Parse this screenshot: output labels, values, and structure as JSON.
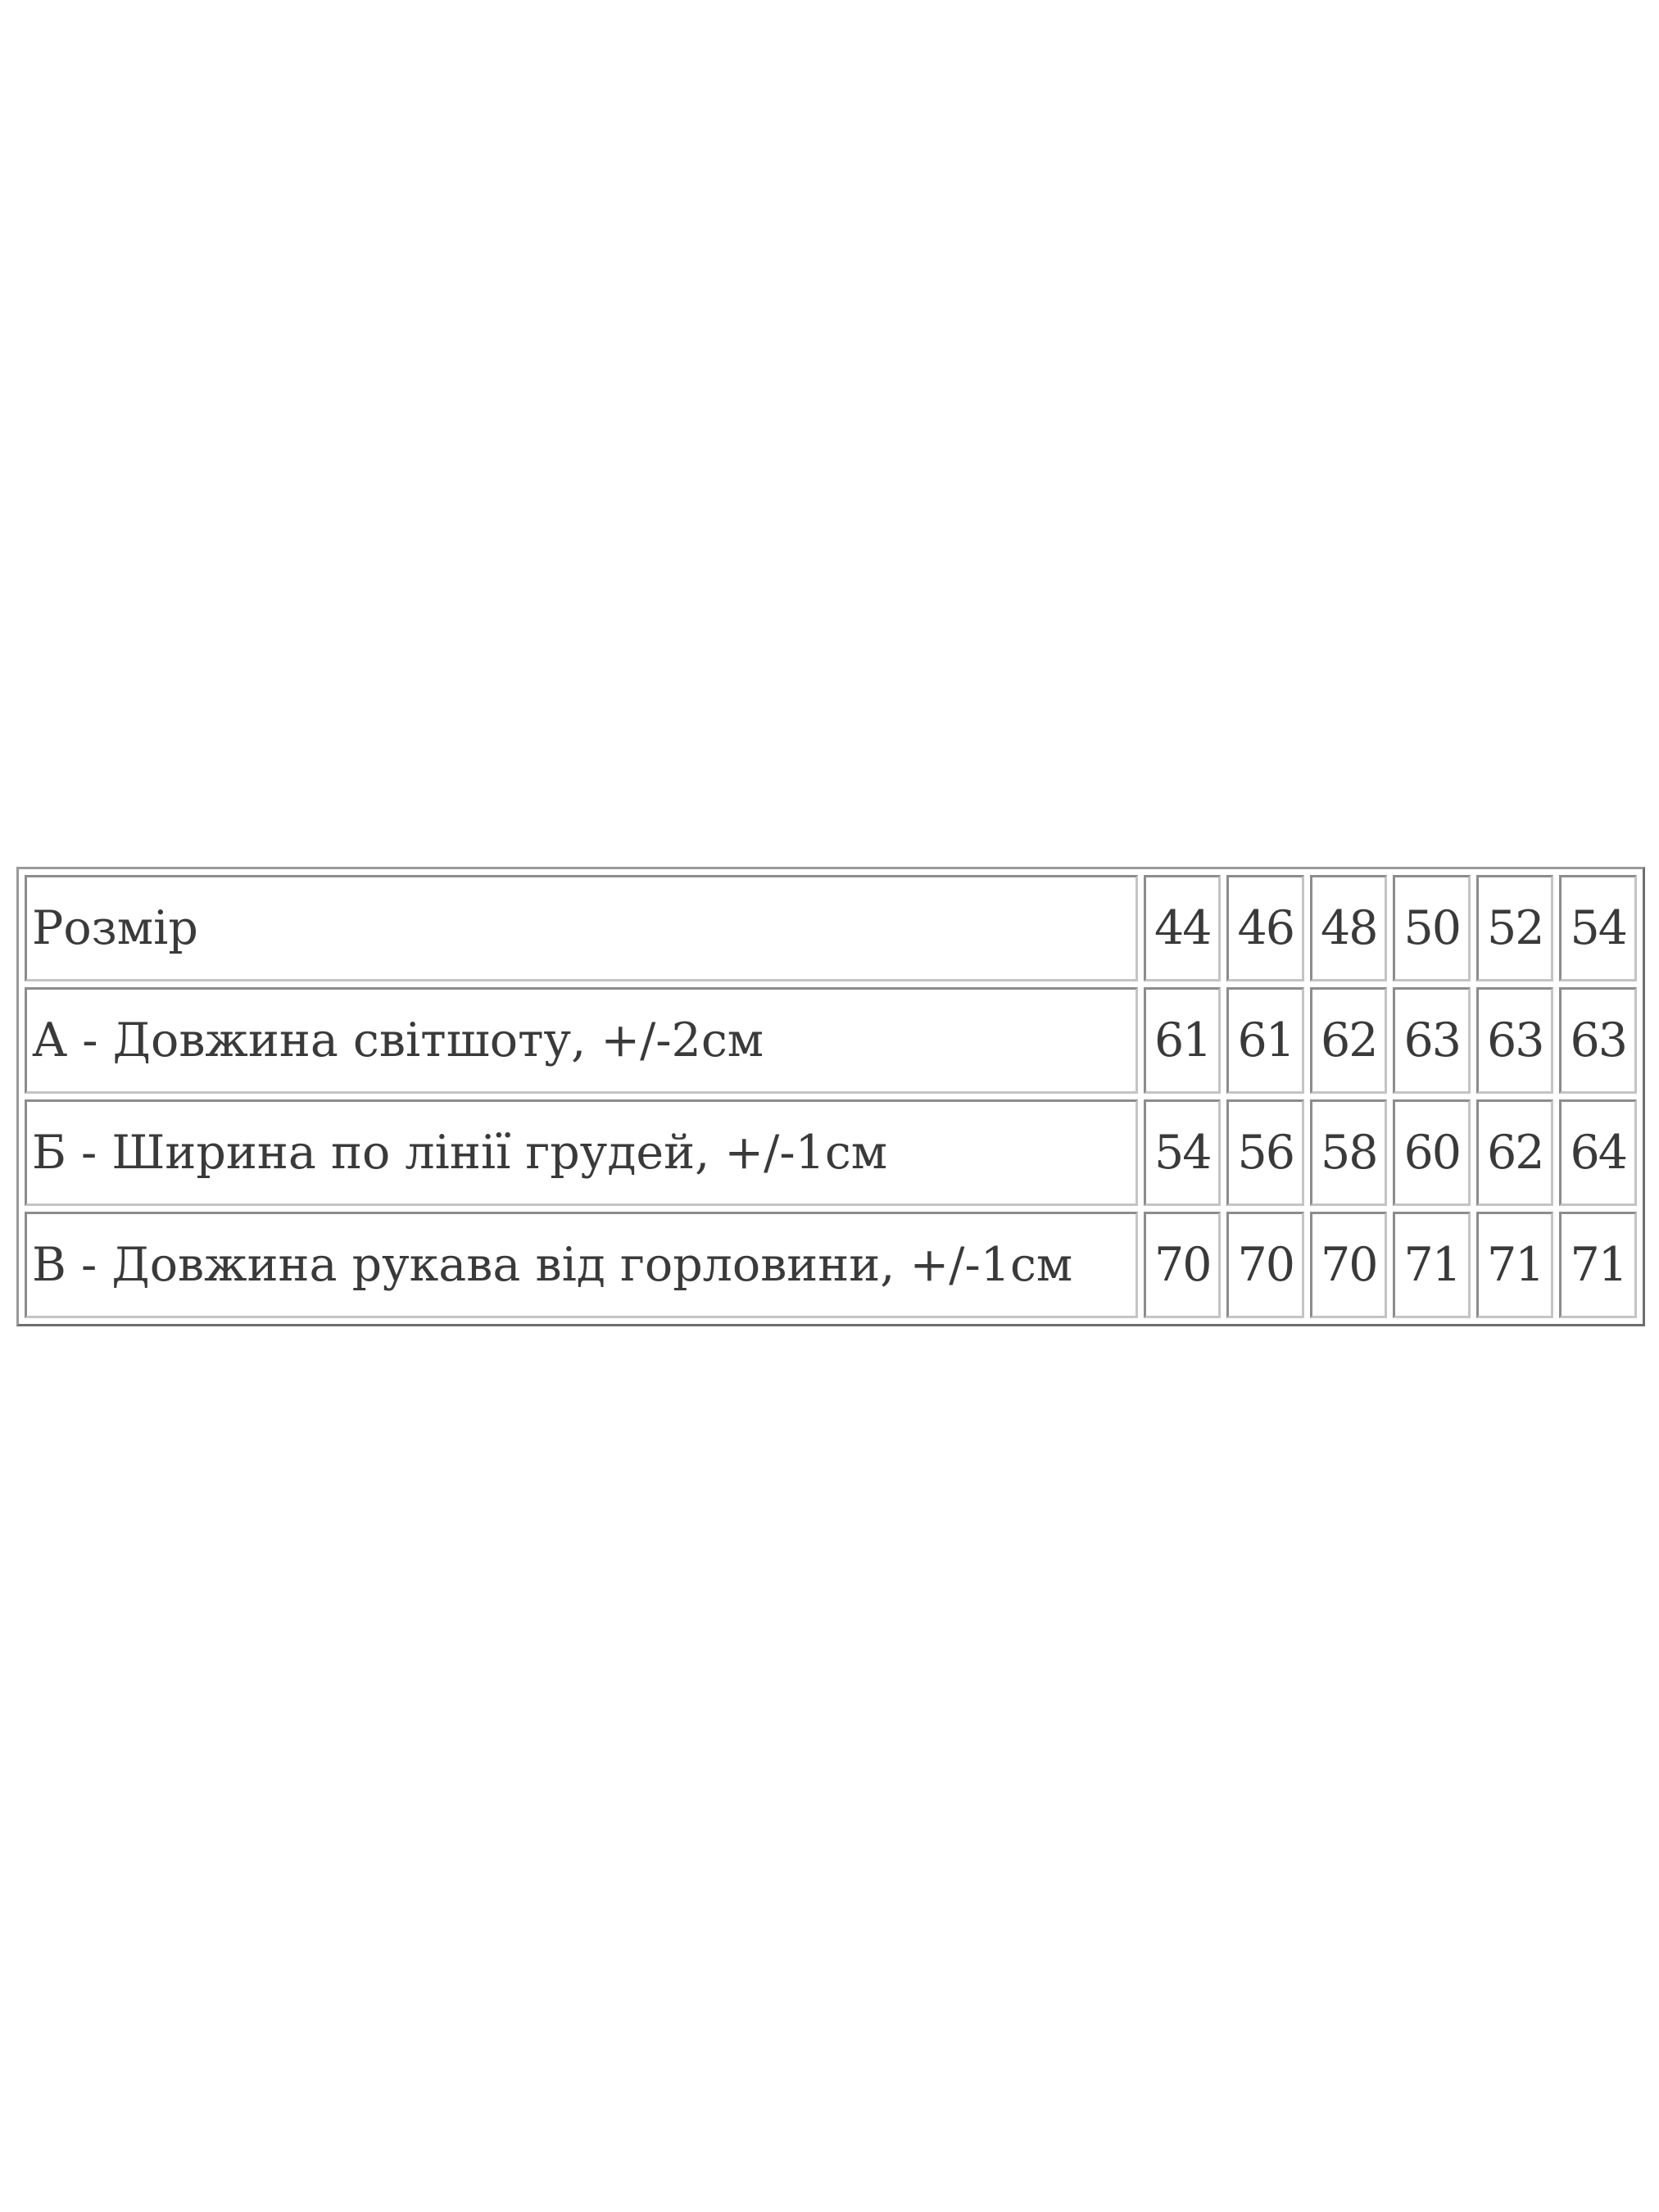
{
  "size_table": {
    "header": {
      "label": "Розмір",
      "sizes": [
        "44",
        "46",
        "48",
        "50",
        "52",
        "54"
      ]
    },
    "rows": [
      {
        "label": "А - Довжина світшоту, +/-2см",
        "values": [
          "61",
          "61",
          "62",
          "63",
          "63",
          "63"
        ]
      },
      {
        "label": "Б - Ширина по лінії грудей, +/-1см",
        "values": [
          "54",
          "56",
          "58",
          "60",
          "62",
          "64"
        ]
      },
      {
        "label": "В - Довжина рукава від горловини, +/-1см",
        "values": [
          "70",
          "70",
          "70",
          "71",
          "71",
          "71"
        ]
      }
    ]
  }
}
